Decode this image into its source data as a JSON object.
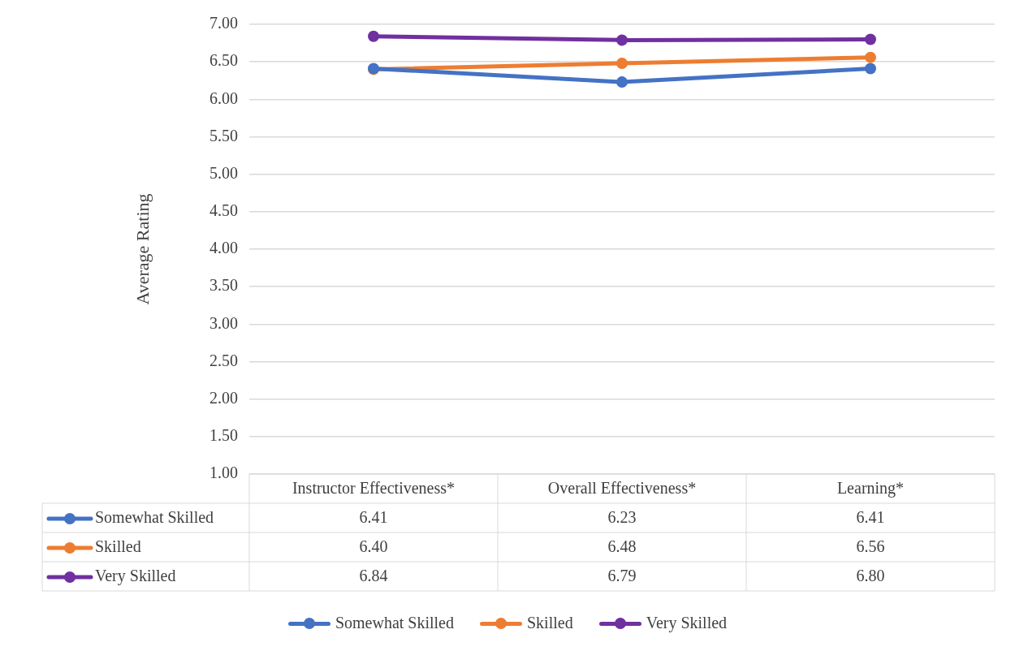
{
  "chart_data": {
    "type": "line",
    "ylabel": "Average Rating",
    "categories": [
      "Instructor Effectiveness*",
      "Overall Effectiveness*",
      "Learning*"
    ],
    "series": [
      {
        "name": "Somewhat Skilled",
        "color": "#4472c4",
        "values": [
          6.41,
          6.23,
          6.41
        ],
        "value_labels": [
          "6.41",
          "6.23",
          "6.41"
        ]
      },
      {
        "name": "Skilled",
        "color": "#ed7d31",
        "values": [
          6.4,
          6.48,
          6.56
        ],
        "value_labels": [
          "6.40",
          "6.48",
          "6.56"
        ]
      },
      {
        "name": "Very Skilled",
        "color": "#7030a0",
        "values": [
          6.84,
          6.79,
          6.8
        ],
        "value_labels": [
          "6.84",
          "6.79",
          "6.80"
        ]
      }
    ],
    "ylim": [
      1,
      7
    ],
    "yticks": [
      {
        "value": 1,
        "label": "1.00"
      },
      {
        "value": 1.5,
        "label": "1.50"
      },
      {
        "value": 2,
        "label": "2.00"
      },
      {
        "value": 2.5,
        "label": "2.50"
      },
      {
        "value": 3,
        "label": "3.00"
      },
      {
        "value": 3.5,
        "label": "3.50"
      },
      {
        "value": 4,
        "label": "4.00"
      },
      {
        "value": 4.5,
        "label": "4.50"
      },
      {
        "value": 5,
        "label": "5.00"
      },
      {
        "value": 5.5,
        "label": "5.50"
      },
      {
        "value": 6,
        "label": "6.00"
      },
      {
        "value": 6.5,
        "label": "6.50"
      },
      {
        "value": 7,
        "label": "7.00"
      }
    ],
    "grid": "y",
    "legend": "bottom",
    "marker": "circle",
    "line_style": "solid"
  }
}
